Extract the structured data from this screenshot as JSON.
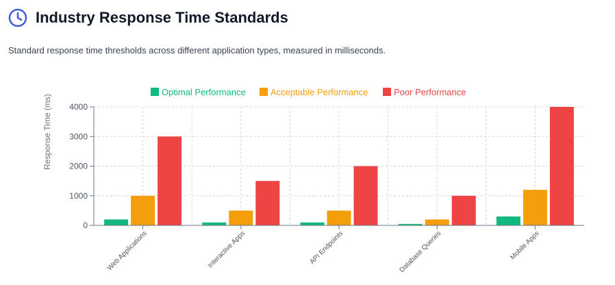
{
  "header": {
    "icon": "clock-icon",
    "title": "Industry Response Time Standards"
  },
  "subtitle": "Standard response time thresholds across different application types, measured in milliseconds.",
  "colors": {
    "optimal": "#10b981",
    "acceptable": "#f59e0b",
    "poor": "#ef4444",
    "accent": "#3b5bdb"
  },
  "chart_data": {
    "type": "bar",
    "title": "",
    "xlabel": "",
    "ylabel": "Response Time (ms)",
    "ylim": [
      0,
      4000
    ],
    "yticks": [
      "0",
      "1000",
      "2000",
      "3000",
      "4000"
    ],
    "categories": [
      "Web Applications",
      "Interactive Apps",
      "API Endpoints",
      "Database Queries",
      "Mobile Apps"
    ],
    "series": [
      {
        "name": "Optimal Performance",
        "color": "#10b981",
        "values": [
          200,
          100,
          100,
          50,
          300
        ]
      },
      {
        "name": "Acceptable Performance",
        "color": "#f59e0b",
        "values": [
          1000,
          500,
          500,
          200,
          1200
        ]
      },
      {
        "name": "Poor Performance",
        "color": "#ef4444",
        "values": [
          3000,
          1500,
          2000,
          1000,
          4000
        ]
      }
    ],
    "grid": true,
    "legend_position": "top"
  }
}
